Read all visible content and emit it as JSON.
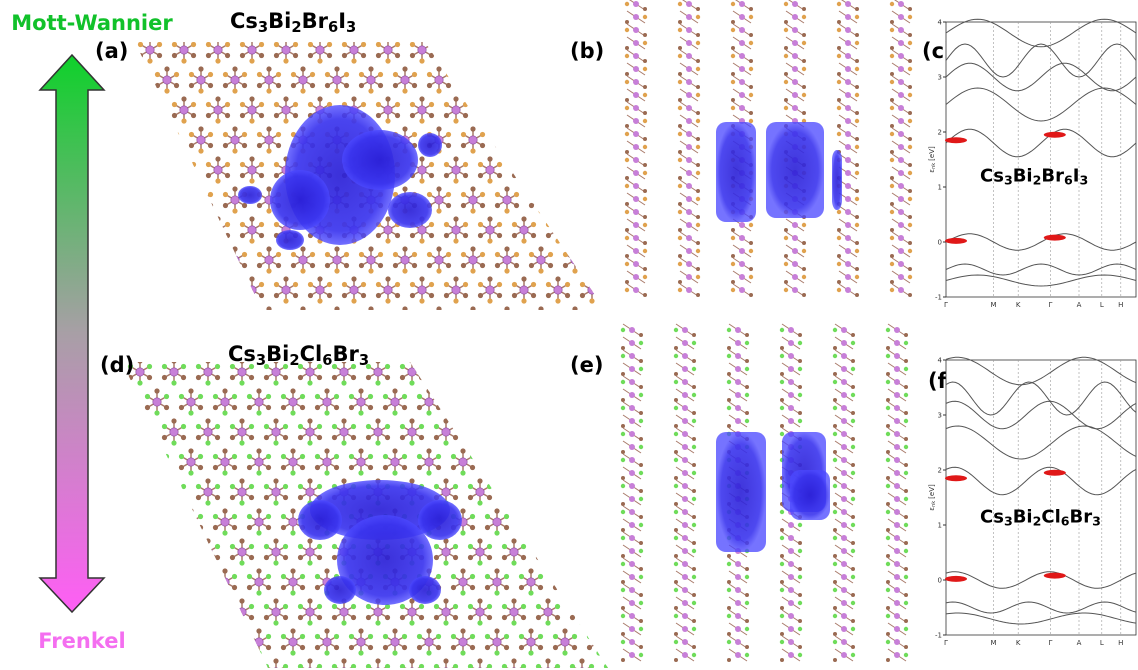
{
  "scale": {
    "top": "Mott-Wannier",
    "bottom": "Frenkel"
  },
  "structures": [
    {
      "label": "(a)",
      "formula": {
        "elements": [
          "Cs",
          "Bi",
          "Br",
          "I"
        ],
        "counts": [
          "3",
          "2",
          "6",
          "3"
        ]
      }
    },
    {
      "label": "(d)",
      "formula": {
        "elements": [
          "Cs",
          "Bi",
          "Cl",
          "Br"
        ],
        "counts": [
          "3",
          "2",
          "6",
          "3"
        ]
      }
    }
  ],
  "side_views": [
    {
      "label": "(b)"
    },
    {
      "label": "(e)"
    }
  ],
  "band_plots": [
    {
      "label": "(c)",
      "formula": {
        "elements": [
          "Cs",
          "Bi",
          "Br",
          "I"
        ],
        "counts": [
          "3",
          "2",
          "6",
          "3"
        ]
      },
      "ylabel": {
        "symbol": "ε",
        "sub": "nk",
        "unit": "[eV]"
      },
      "yticks": [
        4,
        3,
        2,
        1,
        0,
        -1
      ],
      "kpoints": [
        "Γ",
        "M",
        "K",
        "Γ",
        "A",
        "L",
        "H"
      ]
    },
    {
      "label": "(f)",
      "formula": {
        "elements": [
          "Cs",
          "Bi",
          "Cl",
          "Br"
        ],
        "counts": [
          "3",
          "2",
          "6",
          "3"
        ]
      },
      "ylabel": {
        "symbol": "ε",
        "sub": "nk",
        "unit": "[eV]"
      },
      "yticks": [
        4,
        3,
        2,
        1,
        0,
        -1
      ],
      "kpoints": [
        "Γ",
        "M",
        "K",
        "Γ",
        "A",
        "L",
        "H"
      ]
    }
  ]
}
